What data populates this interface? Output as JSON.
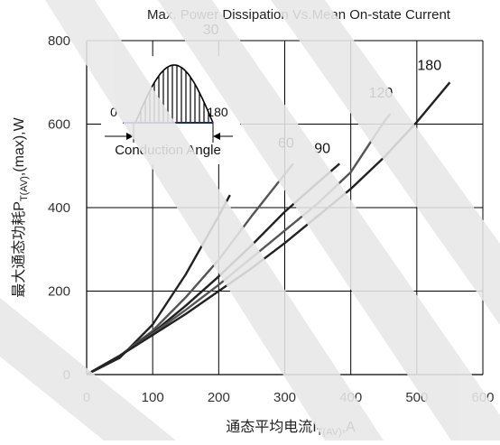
{
  "chart_data": {
    "type": "line",
    "title": "Max. Power Dissipation Vs.Mean On-state Current",
    "xlabel": {
      "prefix": "通态平均电流I",
      "subscript": "T(AV)",
      "suffix": ",A"
    },
    "ylabel": {
      "prefix": "最大通态功耗P",
      "subscript": "T(AV)",
      "suffix": ",(max),W"
    },
    "xlim": [
      0,
      600
    ],
    "ylim": [
      0,
      800
    ],
    "xticks": [
      0,
      100,
      200,
      300,
      400,
      500,
      600
    ],
    "yticks": [
      0,
      200,
      400,
      600,
      800
    ],
    "grid": true,
    "series": [
      {
        "name": "30",
        "color": "#222222",
        "x": [
          0,
          50,
          100,
          150,
          200,
          217
        ],
        "y": [
          0,
          40,
          120,
          240,
          380,
          430
        ]
      },
      {
        "name": "60",
        "color": "#555555",
        "x": [
          0,
          50,
          100,
          150,
          200,
          250,
          300,
          313
        ],
        "y": [
          0,
          45,
          105,
          185,
          275,
          380,
          480,
          505
        ]
      },
      {
        "name": "90",
        "color": "#222222",
        "x": [
          0,
          50,
          100,
          150,
          200,
          250,
          300,
          350,
          383
        ],
        "y": [
          0,
          45,
          100,
          165,
          235,
          310,
          390,
          460,
          505
        ]
      },
      {
        "name": "120",
        "color": "#555555",
        "x": [
          0,
          50,
          100,
          150,
          200,
          250,
          300,
          350,
          400,
          450,
          460
        ],
        "y": [
          0,
          45,
          98,
          155,
          215,
          280,
          345,
          410,
          485,
          605,
          625
        ]
      },
      {
        "name": "180",
        "color": "#222222",
        "x": [
          0,
          50,
          100,
          150,
          200,
          250,
          300,
          350,
          400,
          450,
          500,
          550
        ],
        "y": [
          0,
          45,
          95,
          145,
          200,
          255,
          315,
          380,
          445,
          520,
          605,
          700
        ]
      }
    ],
    "inset": {
      "left_label": "0",
      "right_label": "180",
      "caption": "Conduction Angle"
    }
  }
}
